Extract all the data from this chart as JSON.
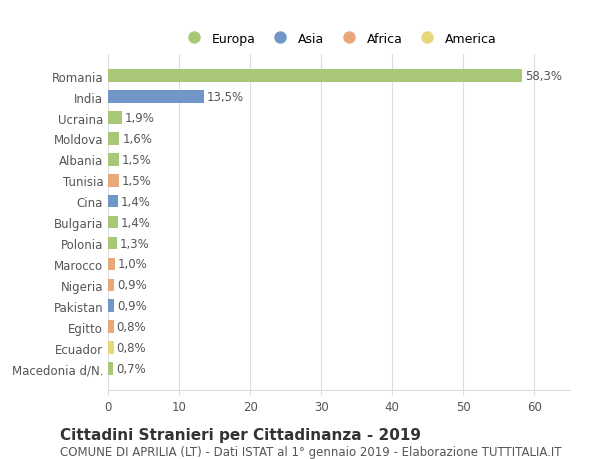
{
  "categories": [
    "Romania",
    "India",
    "Ucraina",
    "Moldova",
    "Albania",
    "Tunisia",
    "Cina",
    "Bulgaria",
    "Polonia",
    "Marocco",
    "Nigeria",
    "Pakistan",
    "Egitto",
    "Ecuador",
    "Macedonia d/N."
  ],
  "values": [
    58.3,
    13.5,
    1.9,
    1.6,
    1.5,
    1.5,
    1.4,
    1.4,
    1.3,
    1.0,
    0.9,
    0.9,
    0.8,
    0.8,
    0.7
  ],
  "labels": [
    "58,3%",
    "13,5%",
    "1,9%",
    "1,6%",
    "1,5%",
    "1,5%",
    "1,4%",
    "1,4%",
    "1,3%",
    "1,0%",
    "0,9%",
    "0,9%",
    "0,8%",
    "0,8%",
    "0,7%"
  ],
  "continent": [
    "Europa",
    "Asia",
    "Europa",
    "Europa",
    "Europa",
    "Africa",
    "Asia",
    "Europa",
    "Europa",
    "Africa",
    "Africa",
    "Asia",
    "Africa",
    "America",
    "Europa"
  ],
  "colors": {
    "Europa": "#a8c878",
    "Asia": "#7097c8",
    "Africa": "#e8a87c",
    "America": "#e8d87c"
  },
  "legend_order": [
    "Europa",
    "Asia",
    "Africa",
    "America"
  ],
  "xlim": [
    0,
    65
  ],
  "xticks": [
    0,
    10,
    20,
    30,
    40,
    50,
    60
  ],
  "title": "Cittadini Stranieri per Cittadinanza - 2019",
  "subtitle": "COMUNE DI APRILIA (LT) - Dati ISTAT al 1° gennaio 2019 - Elaborazione TUTTITALIA.IT",
  "background_color": "#ffffff",
  "grid_color": "#dddddd",
  "bar_height": 0.6,
  "title_fontsize": 11,
  "subtitle_fontsize": 8.5,
  "label_fontsize": 8.5,
  "tick_fontsize": 8.5,
  "legend_fontsize": 9
}
